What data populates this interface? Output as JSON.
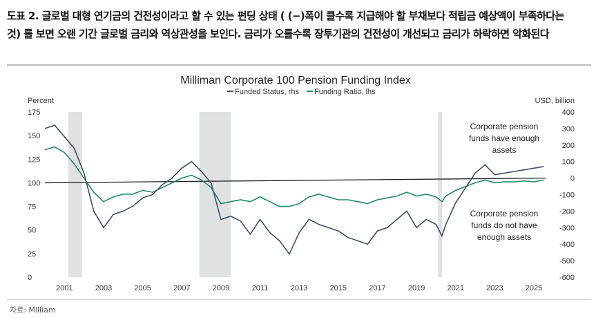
{
  "caption": "도표 2. 글로벌 대형 연기금의 건전성이라고 할 수 있는 펀딩 상태 ( (−)폭이 클수록 지급해야 할 부채보다 적립금 예상액이 부족하다는 것) 를 보면 오랜 기간 글로벌 금리와 역상관성을 보인다. 금리가 오를수록 장투기관의 건전성이 개선되고 금리가 하락하면 악화된다",
  "source": "자료: Milliam",
  "chart_data": {
    "type": "line",
    "title": "Milliman Corporate 100 Pension Funding Index",
    "ylabel": "Percent",
    "y2label": "USD, billion",
    "ylim": [
      0,
      175
    ],
    "y2lim": [
      -600,
      400
    ],
    "xlim": [
      2000,
      2025.6
    ],
    "yticks": [
      "0",
      "25",
      "50",
      "75",
      "100",
      "125",
      "150",
      "175"
    ],
    "y2ticks": [
      "-600",
      "-500",
      "-400",
      "-300",
      "-200",
      "-100",
      "0",
      "100",
      "200",
      "300",
      "400"
    ],
    "xticks": [
      "2001",
      "2003",
      "2005",
      "2007",
      "2009",
      "2011",
      "2013",
      "2015",
      "2017",
      "2019",
      "2021",
      "2023",
      "2025"
    ],
    "recessions": [
      [
        2001.2,
        2001.9
      ],
      [
        2007.9,
        2009.5
      ],
      [
        2020.1,
        2020.3
      ]
    ],
    "colors": {
      "funded_status": "#3b4f6b",
      "funding_ratio": "#1f8a6a",
      "recession": "#dfe2e1"
    },
    "annotations": [
      "Corporate pension funds have enough assets",
      "Corporate pension funds do not have enough assets"
    ],
    "x": [
      2000,
      2000.5,
      2001,
      2001.5,
      2002,
      2002.5,
      2003,
      2003.5,
      2004,
      2004.5,
      2005,
      2005.5,
      2006,
      2006.5,
      2007,
      2007.5,
      2008,
      2008.5,
      2009,
      2009.5,
      2010,
      2010.5,
      2011,
      2011.5,
      2012,
      2012.5,
      2013,
      2013.5,
      2014,
      2014.5,
      2015,
      2015.5,
      2016,
      2016.5,
      2017,
      2017.5,
      2018,
      2018.5,
      2019,
      2019.5,
      2020,
      2020.3,
      2020.5,
      2021,
      2021.5,
      2022,
      2022.5,
      2023,
      2023.5,
      2024,
      2024.5,
      2025,
      2025.5
    ],
    "series": [
      {
        "name": "Funded Status, rhs",
        "axis": "right",
        "values": [
          300,
          320,
          250,
          180,
          30,
          -200,
          -300,
          -220,
          -200,
          -170,
          -120,
          -100,
          -40,
          0,
          60,
          100,
          40,
          -30,
          -250,
          -230,
          -260,
          -340,
          -250,
          -330,
          -380,
          -460,
          -330,
          -250,
          -280,
          -300,
          -320,
          -360,
          -380,
          -400,
          -320,
          -300,
          -250,
          -200,
          -300,
          -250,
          -280,
          -350,
          -280,
          -150,
          -60,
          30,
          80,
          20,
          30,
          40,
          50,
          60,
          70
        ]
      },
      {
        "name": "Funding Ratio, lhs",
        "axis": "left",
        "values": [
          135,
          138,
          132,
          120,
          105,
          90,
          80,
          85,
          88,
          88,
          92,
          90,
          95,
          100,
          105,
          108,
          103,
          95,
          78,
          80,
          82,
          80,
          85,
          80,
          75,
          75,
          78,
          85,
          88,
          85,
          82,
          82,
          80,
          78,
          82,
          84,
          86,
          90,
          86,
          88,
          85,
          80,
          86,
          92,
          96,
          100,
          103,
          100,
          101,
          101,
          102,
          101,
          103
        ]
      }
    ]
  }
}
